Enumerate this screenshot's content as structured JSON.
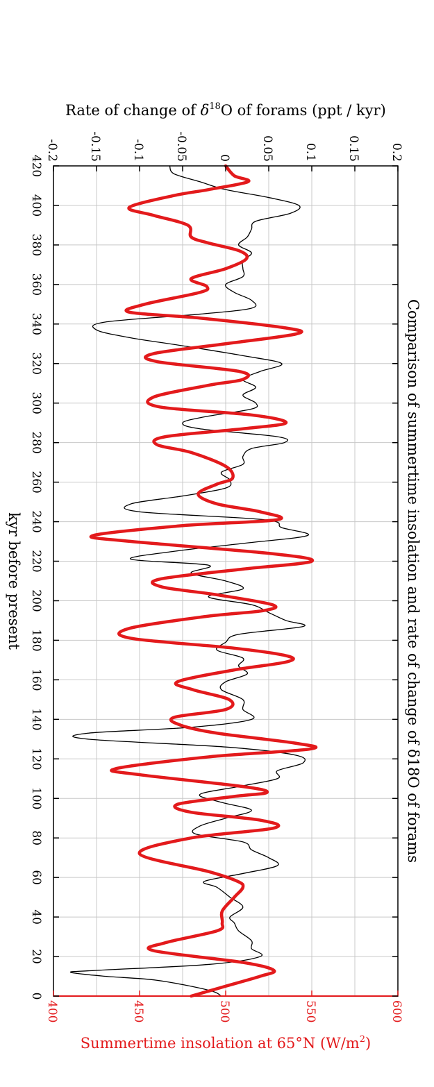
{
  "chart_data": {
    "type": "line",
    "title": "Comparison of summertime insolation and rate of change of δ18O of forams",
    "x_axis": {
      "label": "kyr before present",
      "range": [
        0,
        420
      ],
      "ticks": [
        0,
        20,
        40,
        60,
        80,
        100,
        120,
        140,
        160,
        180,
        200,
        220,
        240,
        260,
        280,
        300,
        320,
        340,
        360,
        380,
        400,
        420
      ]
    },
    "y_axis_left": {
      "label": "Summertime insolation at 65°N (W/m2)",
      "label_html_parts": {
        "prefix": "Summertime insolation at 65°N (W/m",
        "sup": "2",
        "suffix": ")"
      },
      "range": [
        400,
        600
      ],
      "ticks": [
        "400",
        "450",
        "500",
        "550",
        "600"
      ],
      "color": "#e31a1c"
    },
    "y_axis_right": {
      "label": "Rate of change of δ18O of forams (ppt / kyr)",
      "label_html_parts": {
        "prefix": "Rate of change of ",
        "delta": "δ",
        "sup": "18",
        "suffix": "O of forams (ppt / kyr)"
      },
      "range": [
        -0.2,
        0.2
      ],
      "ticks": [
        "-0.2",
        "-0.15",
        "-0.1",
        "-0.05",
        "0",
        "0.05",
        "0.1",
        "0.15",
        "0.2"
      ],
      "color": "#000000"
    },
    "grid": true,
    "series": [
      {
        "axis": "insolation",
        "color": "#e31a1c",
        "points": [
          [
            0,
            480
          ],
          [
            5,
            500
          ],
          [
            10,
            520
          ],
          [
            13,
            528
          ],
          [
            17,
            510
          ],
          [
            23,
            458
          ],
          [
            27,
            465
          ],
          [
            33,
            495
          ],
          [
            37,
            498
          ],
          [
            43,
            498
          ],
          [
            50,
            505
          ],
          [
            55,
            510
          ],
          [
            58,
            507
          ],
          [
            63,
            490
          ],
          [
            72,
            450
          ],
          [
            80,
            480
          ],
          [
            85,
            528
          ],
          [
            89,
            520
          ],
          [
            93,
            480
          ],
          [
            97,
            472
          ],
          [
            101,
            505
          ],
          [
            103,
            524
          ],
          [
            106,
            510
          ],
          [
            112,
            450
          ],
          [
            115,
            436
          ],
          [
            121,
            490
          ],
          [
            125,
            549
          ],
          [
            128,
            540
          ],
          [
            133,
            495
          ],
          [
            137,
            474
          ],
          [
            141,
            470
          ],
          [
            145,
            500
          ],
          [
            150,
            502
          ],
          [
            155,
            481
          ],
          [
            159,
            472
          ],
          [
            165,
            505
          ],
          [
            169,
            535
          ],
          [
            172,
            536
          ],
          [
            176,
            505
          ],
          [
            181,
            445
          ],
          [
            186,
            444
          ],
          [
            192,
            488
          ],
          [
            195,
            522
          ],
          [
            198,
            527
          ],
          [
            203,
            495
          ],
          [
            207,
            463
          ],
          [
            211,
            462
          ],
          [
            216,
            510
          ],
          [
            220,
            550
          ],
          [
            224,
            525
          ],
          [
            230,
            445
          ],
          [
            233,
            423
          ],
          [
            238,
            475
          ],
          [
            241,
            530
          ],
          [
            245,
            520
          ],
          [
            249,
            495
          ],
          [
            254,
            484
          ],
          [
            259,
            495
          ],
          [
            262,
            504
          ],
          [
            268,
            500
          ],
          [
            275,
            480
          ],
          [
            279,
            460
          ],
          [
            283,
            465
          ],
          [
            287,
            510
          ],
          [
            290,
            535
          ],
          [
            294,
            515
          ],
          [
            298,
            462
          ],
          [
            303,
            458
          ],
          [
            309,
            490
          ],
          [
            312,
            510
          ],
          [
            316,
            508
          ],
          [
            321,
            460
          ],
          [
            325,
            458
          ],
          [
            330,
            500
          ],
          [
            335,
            541
          ],
          [
            338,
            535
          ],
          [
            343,
            485
          ],
          [
            346,
            444
          ],
          [
            350,
            453
          ],
          [
            356,
            485
          ],
          [
            359,
            489
          ],
          [
            363,
            480
          ],
          [
            368,
            500
          ],
          [
            373,
            512
          ],
          [
            377,
            508
          ],
          [
            381,
            490
          ],
          [
            384,
            480
          ],
          [
            390,
            478
          ],
          [
            395,
            458
          ],
          [
            399,
            444
          ],
          [
            405,
            470
          ],
          [
            408,
            490
          ],
          [
            412,
            513
          ],
          [
            415,
            505
          ],
          [
            420,
            500
          ]
        ]
      },
      {
        "axis": "rate",
        "color": "#000000",
        "points": [
          [
            0,
            -0.005
          ],
          [
            3,
            -0.02
          ],
          [
            8,
            -0.08
          ],
          [
            10,
            -0.14
          ],
          [
            12,
            -0.18
          ],
          [
            13,
            -0.15
          ],
          [
            16,
            -0.02
          ],
          [
            20,
            0.04
          ],
          [
            24,
            0.03
          ],
          [
            28,
            0.03
          ],
          [
            33,
            0.015
          ],
          [
            37,
            0.01
          ],
          [
            40,
            0.005
          ],
          [
            45,
            0.02
          ],
          [
            50,
            0.005
          ],
          [
            55,
            -0.01
          ],
          [
            58,
            -0.025
          ],
          [
            62,
            0.02
          ],
          [
            66,
            0.06
          ],
          [
            70,
            0.05
          ],
          [
            74,
            0.03
          ],
          [
            78,
            0.02
          ],
          [
            82,
            -0.035
          ],
          [
            86,
            -0.03
          ],
          [
            90,
            0.0
          ],
          [
            94,
            0.03
          ],
          [
            98,
            -0.005
          ],
          [
            102,
            -0.03
          ],
          [
            106,
            0.015
          ],
          [
            110,
            0.06
          ],
          [
            114,
            0.06
          ],
          [
            118,
            0.09
          ],
          [
            122,
            0.08
          ],
          [
            126,
            0.0
          ],
          [
            130,
            -0.16
          ],
          [
            133,
            -0.16
          ],
          [
            136,
            -0.04
          ],
          [
            140,
            0.03
          ],
          [
            145,
            0.02
          ],
          [
            150,
            0.02
          ],
          [
            155,
            -0.005
          ],
          [
            159,
            0.0
          ],
          [
            163,
            0.025
          ],
          [
            167,
            0.015
          ],
          [
            171,
            0.02
          ],
          [
            175,
            -0.01
          ],
          [
            179,
            0.0
          ],
          [
            183,
            0.015
          ],
          [
            187,
            0.09
          ],
          [
            190,
            0.07
          ],
          [
            194,
            0.05
          ],
          [
            198,
            0.03
          ],
          [
            202,
            -0.02
          ],
          [
            206,
            0.02
          ],
          [
            210,
            0.0
          ],
          [
            214,
            -0.04
          ],
          [
            218,
            -0.02
          ],
          [
            221,
            -0.11
          ],
          [
            225,
            -0.06
          ],
          [
            229,
            0.02
          ],
          [
            233,
            0.095
          ],
          [
            237,
            0.065
          ],
          [
            241,
            0.045
          ],
          [
            245,
            -0.1
          ],
          [
            249,
            -0.11
          ],
          [
            253,
            -0.05
          ],
          [
            257,
            0.0
          ],
          [
            261,
            0.005
          ],
          [
            265,
            -0.005
          ],
          [
            269,
            0.02
          ],
          [
            273,
            0.02
          ],
          [
            277,
            0.03
          ],
          [
            280,
            0.068
          ],
          [
            283,
            0.06
          ],
          [
            287,
            -0.03
          ],
          [
            290,
            -0.05
          ],
          [
            293,
            -0.025
          ],
          [
            297,
            0.03
          ],
          [
            300,
            0.035
          ],
          [
            304,
            0.02
          ],
          [
            308,
            0.035
          ],
          [
            312,
            0.02
          ],
          [
            316,
            0.04
          ],
          [
            320,
            0.065
          ],
          [
            324,
            0.02
          ],
          [
            329,
            -0.05
          ],
          [
            333,
            -0.11
          ],
          [
            337,
            -0.15
          ],
          [
            341,
            -0.14
          ],
          [
            345,
            -0.03
          ],
          [
            348,
            0.03
          ],
          [
            352,
            0.03
          ],
          [
            356,
            0.01
          ],
          [
            360,
            0.0
          ],
          [
            364,
            0.02
          ],
          [
            368,
            0.02
          ],
          [
            372,
            0.02
          ],
          [
            376,
            0.03
          ],
          [
            380,
            0.015
          ],
          [
            384,
            0.025
          ],
          [
            388,
            0.03
          ],
          [
            392,
            0.035
          ],
          [
            396,
            0.075
          ],
          [
            400,
            0.085
          ],
          [
            404,
            0.05
          ],
          [
            408,
            0.0
          ],
          [
            412,
            -0.03
          ],
          [
            416,
            -0.06
          ],
          [
            420,
            -0.065
          ]
        ]
      }
    ]
  }
}
